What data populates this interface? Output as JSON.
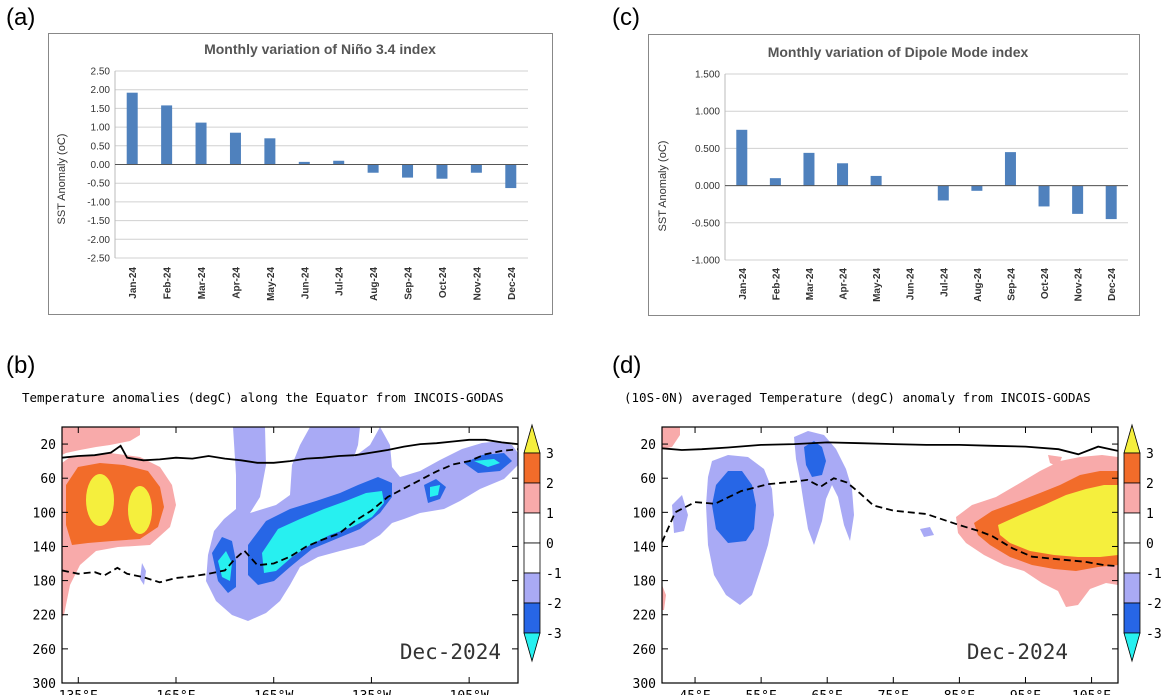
{
  "panels": {
    "a": "(a)",
    "b": "(b)",
    "c": "(c)",
    "d": "(d)"
  },
  "colors": {
    "bar": "#4f81bd",
    "pos1": "#f8aaaa",
    "pos2": "#f26c2a",
    "pos3": "#f5ef3d",
    "neg1": "#a9aaf5",
    "neg2": "#2766e6",
    "neg3": "#27f0f0"
  },
  "chart_data": [
    {
      "id": "a",
      "type": "bar",
      "title": "Monthly variation of Niño 3.4 index",
      "ylabel": "SST Anomaly (oC)",
      "categories": [
        "Jan-24",
        "Feb-24",
        "Mar-24",
        "Apr-24",
        "May-24",
        "Jun-24",
        "Jul-24",
        "Aug-24",
        "Sep-24",
        "Oct-24",
        "Nov-24",
        "Dec-24"
      ],
      "values": [
        1.92,
        1.58,
        1.12,
        0.85,
        0.7,
        0.07,
        0.1,
        -0.22,
        -0.35,
        -0.38,
        -0.22,
        -0.63
      ],
      "ylim": [
        -2.5,
        2.5
      ],
      "yticks": [
        "2.50",
        "2.00",
        "1.50",
        "1.00",
        "0.50",
        "0.00",
        "-0.50",
        "-1.00",
        "-1.50",
        "-2.00",
        "-2.50"
      ],
      "grid": true
    },
    {
      "id": "c",
      "type": "bar",
      "title": "Monthly variation of Dipole Mode index",
      "ylabel": "SST Anomaly (oC)",
      "categories": [
        "Jan-24",
        "Feb-24",
        "Mar-24",
        "Apr-24",
        "May-24",
        "Jun-24",
        "Jul-24",
        "Aug-24",
        "Sep-24",
        "Oct-24",
        "Nov-24",
        "Dec-24"
      ],
      "values": [
        0.75,
        0.1,
        0.44,
        0.3,
        0.13,
        0.0,
        -0.2,
        -0.07,
        0.45,
        -0.28,
        -0.38,
        -0.45
      ],
      "ylim": [
        -1.0,
        1.5
      ],
      "yticks": [
        "1.500",
        "1.000",
        "0.500",
        "0.000",
        "-0.500",
        "-1.000"
      ],
      "grid": true
    },
    {
      "id": "b",
      "type": "heatmap",
      "title": "Temperature anomalies (degC) along the Equator from INCOIS-GODAS",
      "annotation": "Dec-2024",
      "xticks": [
        "135°E",
        "165°E",
        "165°W",
        "135°W",
        "105°W"
      ],
      "yticks": [
        "20",
        "60",
        "100",
        "140",
        "180",
        "220",
        "260",
        "300"
      ],
      "ylim": [
        300,
        0
      ],
      "colorbar": [
        "3",
        "2",
        "1",
        "0",
        "-1",
        "-2",
        "-3"
      ],
      "mixed_layer": [
        [
          130,
          36
        ],
        [
          135,
          34
        ],
        [
          140,
          33
        ],
        [
          145,
          30
        ],
        [
          148,
          22
        ],
        [
          150,
          36
        ],
        [
          155,
          39
        ],
        [
          160,
          38
        ],
        [
          165,
          36
        ],
        [
          170,
          37
        ],
        [
          175,
          34
        ],
        [
          180,
          37
        ],
        [
          185,
          39
        ],
        [
          190,
          42
        ],
        [
          195,
          42
        ],
        [
          200,
          40
        ],
        [
          205,
          37
        ],
        [
          210,
          36
        ],
        [
          215,
          34
        ],
        [
          220,
          33
        ],
        [
          225,
          30
        ],
        [
          230,
          27
        ],
        [
          235,
          23
        ],
        [
          240,
          20
        ],
        [
          245,
          19
        ],
        [
          250,
          17
        ],
        [
          255,
          15
        ],
        [
          260,
          15
        ],
        [
          265,
          18
        ],
        [
          270,
          20
        ]
      ],
      "thermocline": [
        [
          130,
          168
        ],
        [
          135,
          172
        ],
        [
          140,
          170
        ],
        [
          143,
          174
        ],
        [
          147,
          165
        ],
        [
          150,
          172
        ],
        [
          155,
          176
        ],
        [
          160,
          182
        ],
        [
          165,
          177
        ],
        [
          170,
          175
        ],
        [
          175,
          172
        ],
        [
          180,
          168
        ],
        [
          183,
          155
        ],
        [
          186,
          145
        ],
        [
          190,
          162
        ],
        [
          195,
          160
        ],
        [
          200,
          152
        ],
        [
          205,
          140
        ],
        [
          210,
          132
        ],
        [
          215,
          125
        ],
        [
          220,
          110
        ],
        [
          225,
          98
        ],
        [
          230,
          82
        ],
        [
          235,
          72
        ],
        [
          240,
          62
        ],
        [
          245,
          52
        ],
        [
          250,
          44
        ],
        [
          255,
          40
        ],
        [
          260,
          32
        ],
        [
          265,
          28
        ],
        [
          270,
          26
        ]
      ]
    },
    {
      "id": "d",
      "type": "heatmap",
      "title": "(10S-0N) averaged Temperature (degC) anomaly from INCOIS-GODAS",
      "annotation": "Dec-2024",
      "xticks": [
        "45°E",
        "55°E",
        "65°E",
        "75°E",
        "85°E",
        "95°E",
        "105°E"
      ],
      "yticks": [
        "20",
        "60",
        "100",
        "140",
        "180",
        "220",
        "260",
        "300"
      ],
      "ylim": [
        300,
        0
      ],
      "colorbar": [
        "3",
        "2",
        "1",
        "0",
        "-1",
        "-2",
        "-3"
      ],
      "mixed_layer": [
        [
          40,
          25
        ],
        [
          43,
          27
        ],
        [
          46,
          26
        ],
        [
          50,
          24
        ],
        [
          55,
          21
        ],
        [
          60,
          20
        ],
        [
          65,
          18
        ],
        [
          70,
          19
        ],
        [
          75,
          20
        ],
        [
          80,
          21
        ],
        [
          85,
          21
        ],
        [
          90,
          22
        ],
        [
          95,
          23
        ],
        [
          100,
          26
        ],
        [
          103,
          32
        ],
        [
          106,
          23
        ],
        [
          109,
          28
        ]
      ],
      "thermocline": [
        [
          40,
          135
        ],
        [
          42,
          100
        ],
        [
          45,
          88
        ],
        [
          48,
          90
        ],
        [
          52,
          75
        ],
        [
          56,
          67
        ],
        [
          60,
          64
        ],
        [
          62,
          62
        ],
        [
          64,
          70
        ],
        [
          66,
          60
        ],
        [
          68,
          65
        ],
        [
          70,
          78
        ],
        [
          72,
          92
        ],
        [
          75,
          98
        ],
        [
          80,
          102
        ],
        [
          85,
          115
        ],
        [
          88,
          122
        ],
        [
          90,
          128
        ],
        [
          93,
          142
        ],
        [
          96,
          152
        ],
        [
          100,
          155
        ],
        [
          104,
          158
        ],
        [
          107,
          162
        ],
        [
          109,
          163
        ]
      ]
    }
  ]
}
